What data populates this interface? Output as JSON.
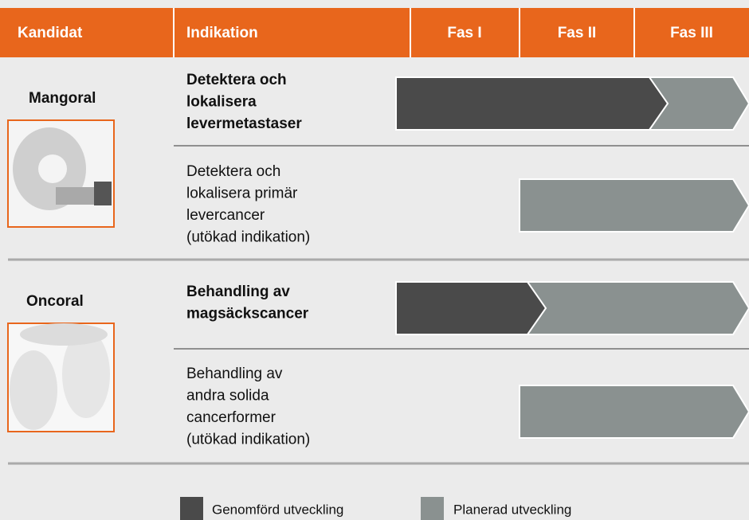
{
  "header": {
    "columns": [
      "Kandidat",
      "Indikation",
      "Fas I",
      "Fas II",
      "Fas III"
    ]
  },
  "candidates": [
    {
      "name": "Mangoral",
      "indications": [
        {
          "lines": [
            "Detektera och",
            "lokalisera",
            "levermetastaser"
          ]
        },
        {
          "lines": [
            "Detektera och",
            "lokalisera primär",
            "levercancer",
            "(utökad indikation)"
          ]
        }
      ]
    },
    {
      "name": "Oncoral",
      "indications": [
        {
          "lines": [
            "Behandling av",
            "magsäckscancer"
          ]
        },
        {
          "lines": [
            "Behandling av",
            "andra solida",
            "cancerformer",
            "(utökad indikation)"
          ]
        }
      ]
    }
  ],
  "legend": [
    "Genomförd utveckling",
    "Planerad utveckling"
  ]
}
